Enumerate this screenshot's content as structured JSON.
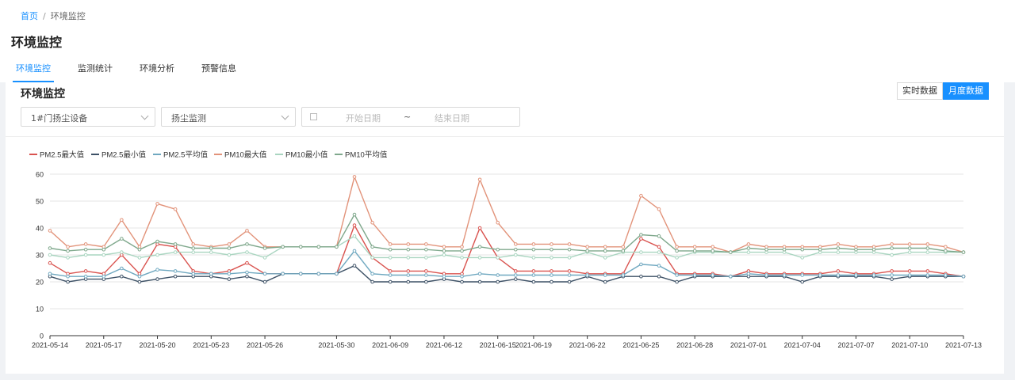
{
  "breadcrumb": {
    "home": "首页",
    "sep": "/",
    "current": "环境监控"
  },
  "page_title": "环境监控",
  "tabs": [
    "环境监控",
    "监测统计",
    "环境分析",
    "预警信息"
  ],
  "card": {
    "title": "环境监控",
    "buttons": {
      "realtime": "实时数据",
      "monthly": "月度数据"
    },
    "device_select": "1#门扬尘设备",
    "type_select": "扬尘监测",
    "date_range": {
      "start_placeholder": "开始日期",
      "separator": "~",
      "end_placeholder": "结束日期"
    }
  },
  "colors": {
    "accent": "#1890ff"
  },
  "chart_data": {
    "type": "line",
    "ylim": [
      0,
      60
    ],
    "yticks": [
      0,
      10,
      20,
      30,
      40,
      50,
      60
    ],
    "x": [
      "2021-05-14",
      "2021-05-15",
      "2021-05-16",
      "2021-05-17",
      "2021-05-18",
      "2021-05-19",
      "2021-05-20",
      "2021-05-21",
      "2021-05-22",
      "2021-05-23",
      "2021-05-24",
      "2021-05-25",
      "2021-05-26",
      "2021-05-27",
      "2021-05-28",
      "2021-05-29",
      "2021-05-30",
      "2021-05-31",
      "2021-06-01",
      "2021-06-09",
      "2021-06-10",
      "2021-06-11",
      "2021-06-12",
      "2021-06-13",
      "2021-06-14",
      "2021-06-15",
      "2021-06-16",
      "2021-06-19",
      "2021-06-20",
      "2021-06-21",
      "2021-06-22",
      "2021-06-23",
      "2021-06-24",
      "2021-06-25",
      "2021-06-26",
      "2021-06-27",
      "2021-06-28",
      "2021-06-29",
      "2021-06-30",
      "2021-07-01",
      "2021-07-02",
      "2021-07-03",
      "2021-07-04",
      "2021-07-05",
      "2021-07-06",
      "2021-07-07",
      "2021-07-08",
      "2021-07-09",
      "2021-07-10",
      "2021-07-11",
      "2021-07-12",
      "2021-07-13"
    ],
    "xtick_labels": [
      "2021-05-14",
      "2021-05-17",
      "2021-05-20",
      "2021-05-23",
      "2021-05-26",
      "2021-05-30",
      "2021-06-09",
      "2021-06-12",
      "2021-06-15",
      "2021-06-19",
      "2021-06-22",
      "2021-06-25",
      "2021-06-28",
      "2021-07-01",
      "2021-07-04",
      "2021-07-07",
      "2021-07-10",
      "2021-07-13"
    ],
    "legend_position": "top-left",
    "series": [
      {
        "name": "PM2.5最大值",
        "color": "#d9534f",
        "values": [
          27,
          23,
          24,
          23,
          30,
          23,
          34,
          33,
          24,
          23,
          24,
          27,
          23,
          23,
          23,
          23,
          23,
          41,
          29,
          24,
          24,
          24,
          23,
          23,
          40,
          29,
          24,
          24,
          24,
          24,
          23,
          23,
          23,
          36,
          33,
          23,
          23,
          23,
          22,
          24,
          23,
          23,
          23,
          23,
          24,
          23,
          23,
          24,
          24,
          24,
          23,
          22
        ]
      },
      {
        "name": "PM2.5最小值",
        "color": "#3d5166",
        "values": [
          22,
          20,
          21,
          21,
          22,
          20,
          21,
          22,
          22,
          22,
          21,
          22,
          20,
          23,
          23,
          23,
          23,
          26,
          20,
          20,
          20,
          20,
          21,
          20,
          20,
          20,
          21,
          20,
          20,
          20,
          22,
          20,
          22,
          22,
          22,
          20,
          22,
          22,
          22,
          22,
          22,
          22,
          20,
          22,
          22,
          22,
          22,
          21,
          22,
          22,
          22,
          22
        ]
      },
      {
        "name": "PM2.5平均值",
        "color": "#6fa8c0",
        "values": [
          23,
          22,
          22,
          22,
          25,
          22,
          24.5,
          24,
          23,
          23,
          23,
          23.5,
          23,
          23,
          23,
          23,
          23,
          31.5,
          23,
          22.5,
          22.5,
          22.5,
          22,
          22,
          23,
          22.5,
          22.5,
          22.5,
          22.5,
          22.5,
          22.5,
          22.5,
          22.5,
          26.5,
          26,
          22.5,
          22.5,
          22.5,
          22,
          23,
          22.5,
          22.5,
          22.5,
          22.5,
          22.5,
          22.5,
          22.5,
          22.5,
          22.5,
          22.5,
          22.5,
          22
        ]
      },
      {
        "name": "PM10最大值",
        "color": "#e2937a",
        "values": [
          39,
          33,
          34,
          33,
          43,
          33,
          49,
          47,
          34,
          33,
          34,
          39,
          33,
          33,
          33,
          33,
          33,
          59,
          42,
          34,
          34,
          34,
          33,
          33,
          58,
          42,
          34,
          34,
          34,
          34,
          33,
          33,
          33,
          52,
          47,
          33,
          33,
          33,
          31,
          34,
          33,
          33,
          33,
          33,
          34,
          33,
          33,
          34,
          34,
          34,
          33,
          31
        ]
      },
      {
        "name": "PM10最小值",
        "color": "#a9d5c0",
        "values": [
          30,
          29,
          30,
          30,
          31,
          29,
          30,
          31,
          31,
          31,
          30,
          31,
          29,
          33,
          33,
          33,
          33,
          37,
          29,
          29,
          29,
          29,
          30,
          29,
          29,
          29,
          30,
          29,
          29,
          29,
          31,
          29,
          31,
          31,
          31,
          29,
          31,
          31,
          31,
          31,
          31,
          31,
          29,
          31,
          31,
          31,
          31,
          30,
          31,
          31,
          31,
          31
        ]
      },
      {
        "name": "PM10平均值",
        "color": "#7fa88c",
        "values": [
          32.5,
          31.5,
          32,
          32,
          36,
          32,
          35,
          34,
          32.5,
          32.5,
          32.5,
          34,
          32.5,
          33,
          33,
          33,
          33,
          45,
          33,
          32,
          32,
          32,
          31.5,
          31.5,
          33,
          32,
          32,
          32,
          32,
          32,
          31.5,
          31.5,
          31.5,
          37.5,
          37,
          31.5,
          31.5,
          31.5,
          31,
          32.5,
          32,
          32,
          32,
          32,
          32.5,
          32,
          32,
          32.5,
          32.5,
          32.5,
          31.5,
          31
        ]
      }
    ]
  }
}
